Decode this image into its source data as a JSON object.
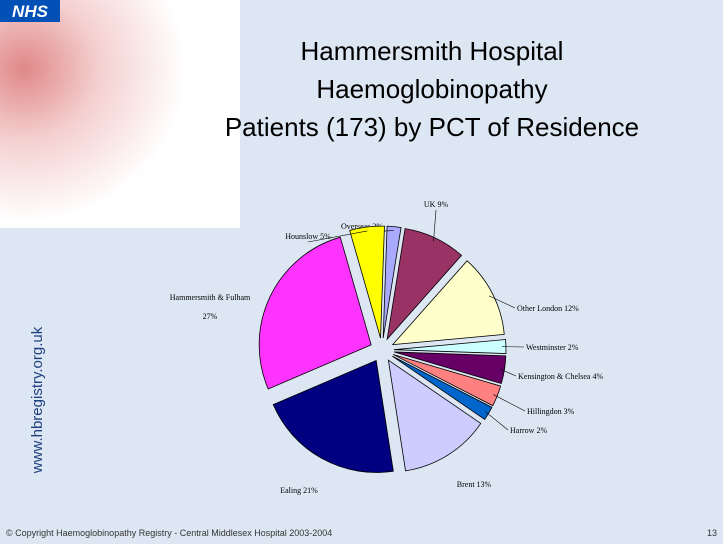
{
  "logo": "NHS",
  "website": "www.hbregistry.org.uk",
  "footer": "© Copyright Haemoglobinopathy Registry - Central Middlesex Hospital 2003-2004",
  "page_number": "13",
  "chart_data": {
    "type": "pie",
    "title": [
      "Hammersmith Hospital",
      "Haemoglobinopathy",
      "Patients (173) by PCT of Residence"
    ],
    "categories": [
      "Overseas",
      "UK",
      "Other London",
      "Westminster",
      "Kensington & Chelsea",
      "Hillingdon",
      "Harrow",
      "Brent",
      "Ealing",
      "Hammersmith & Fulham",
      "Hounslow"
    ],
    "values": [
      2,
      9,
      12,
      2,
      4,
      3,
      2,
      13,
      21,
      27,
      5
    ],
    "value_labels": [
      "2%",
      "9%",
      "12%",
      "2%",
      "4%",
      "3%",
      "2%",
      "13%",
      "21%",
      "27%",
      "5%"
    ],
    "colors": [
      "#a9a9ff",
      "#993366",
      "#ffffcc",
      "#ccffff",
      "#660066",
      "#ff8080",
      "#0066cc",
      "#ccccff",
      "#000080",
      "#ff33ff",
      "#ffff00"
    ]
  }
}
